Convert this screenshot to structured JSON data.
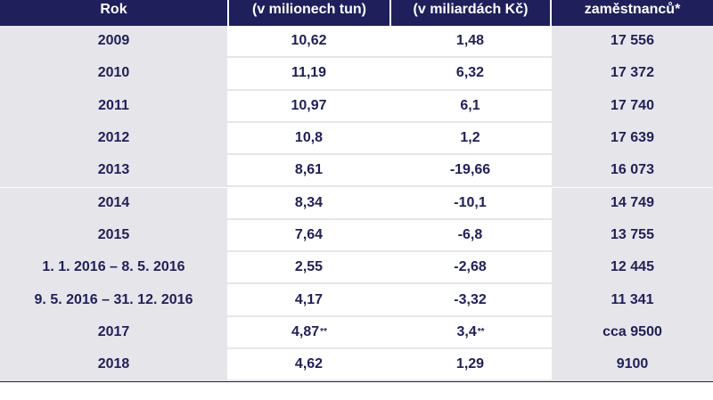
{
  "table": {
    "headers": [
      "Rok",
      "(v milionech tun)",
      "(v miliardách Kč)",
      "zaměstnanců*"
    ],
    "rows": [
      {
        "year": "2009",
        "output": "10,62",
        "output_mark": "",
        "result": "1,48",
        "result_mark": "",
        "employees": "17 556"
      },
      {
        "year": "2010",
        "output": "11,19",
        "output_mark": "",
        "result": "6,32",
        "result_mark": "",
        "employees": "17 372"
      },
      {
        "year": "2011",
        "output": "10,97",
        "output_mark": "",
        "result": "6,1",
        "result_mark": "",
        "employees": "17 740"
      },
      {
        "year": "2012",
        "output": "10,8",
        "output_mark": "",
        "result": "1,2",
        "result_mark": "",
        "employees": "17 639"
      },
      {
        "year": "2013",
        "output": "8,61",
        "output_mark": "",
        "result": "-19,66",
        "result_mark": "",
        "employees": "16 073"
      },
      {
        "year": "2014",
        "output": "8,34",
        "output_mark": "",
        "result": "-10,1",
        "result_mark": "",
        "employees": "14 749"
      },
      {
        "year": "2015",
        "output": "7,64",
        "output_mark": "",
        "result": "-6,8",
        "result_mark": "",
        "employees": "13 755"
      },
      {
        "year": "1. 1. 2016 – 8. 5. 2016",
        "output": "2,55",
        "output_mark": "",
        "result": "-2,68",
        "result_mark": "",
        "employees": "12 445"
      },
      {
        "year": "9. 5. 2016 – 31. 12. 2016",
        "output": "4,17",
        "output_mark": "",
        "result": "-3,32",
        "result_mark": "",
        "employees": "11 341"
      },
      {
        "year": "2017",
        "output": "4,87",
        "output_mark": "**",
        "result": "3,4",
        "result_mark": "**",
        "employees": "cca 9500"
      },
      {
        "year": "2018",
        "output": "4,62",
        "output_mark": "",
        "result": "1,29",
        "result_mark": "",
        "employees": "9100"
      }
    ]
  },
  "colors": {
    "header_bg": "#1f1f5c",
    "text": "#1f1f5c",
    "shaded_cell": "#e6e6ea"
  }
}
